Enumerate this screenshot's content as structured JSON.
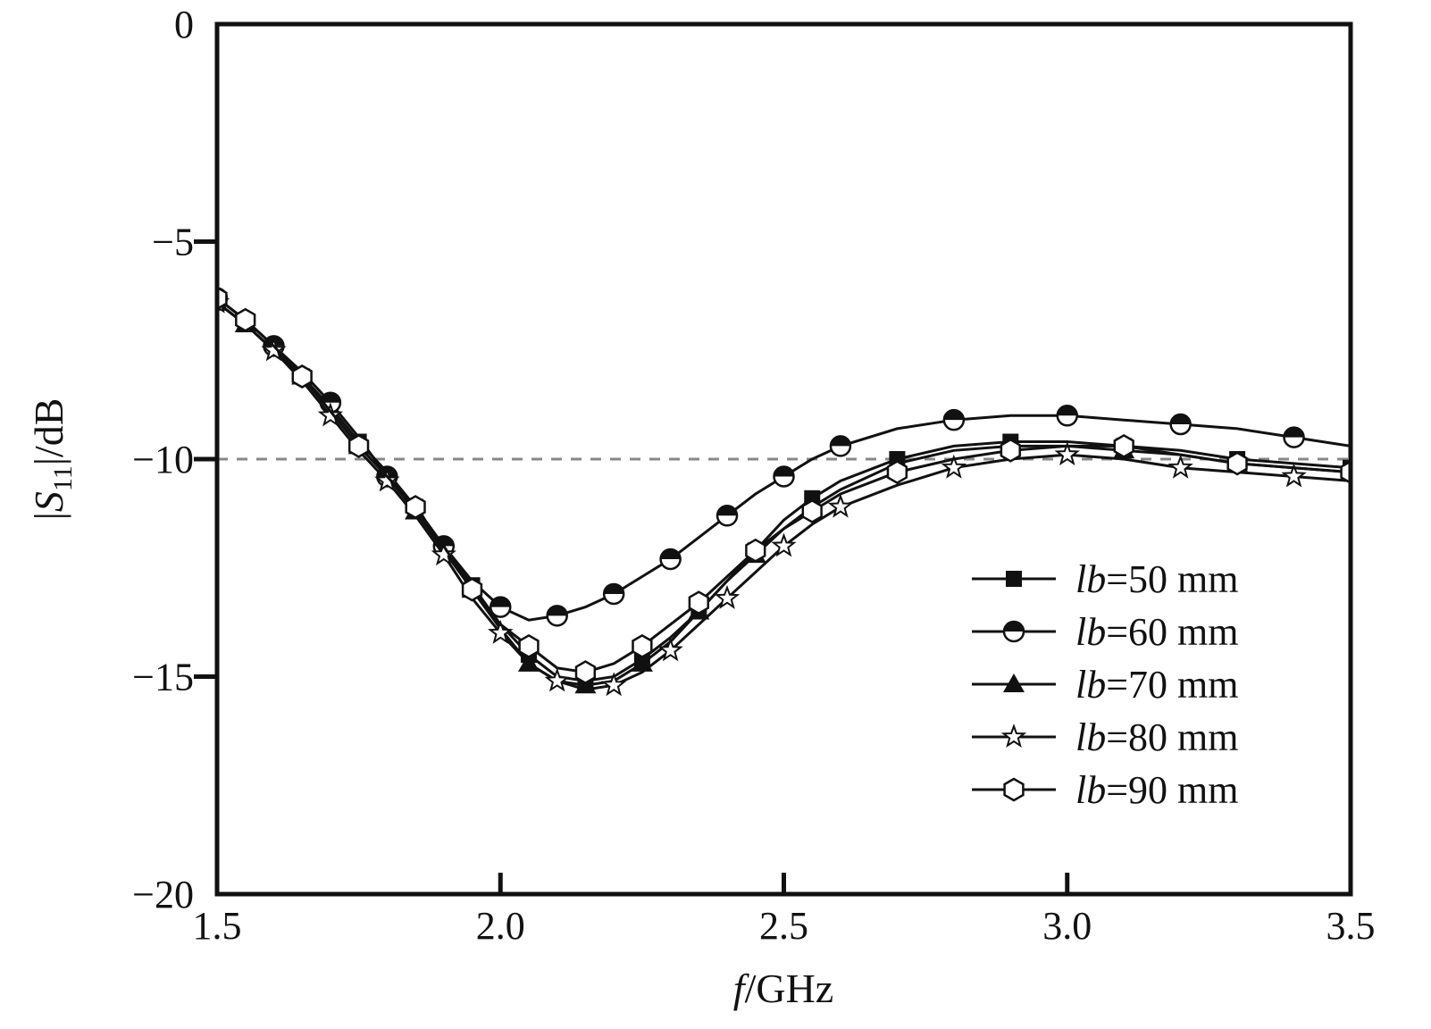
{
  "chart_data": {
    "type": "line",
    "xlabel": {
      "italic": "f",
      "rest": "/GHz"
    },
    "ylabel": {
      "prefix": "|",
      "italic": "S",
      "sub": "11",
      "suffix": "|/dB"
    },
    "xlim": [
      1.5,
      3.5
    ],
    "ylim": [
      -20,
      0
    ],
    "xticks": [
      "1.5",
      "2.0",
      "2.5",
      "3.0",
      "3.5"
    ],
    "yticks": [
      "0",
      "−5",
      "−10",
      "−15",
      "−20"
    ],
    "xtick_values": [
      1.5,
      2.0,
      2.5,
      3.0,
      3.5
    ],
    "ytick_values": [
      0,
      -5,
      -10,
      -15,
      -20
    ],
    "grid": false,
    "legend_position": "bottom-right",
    "reference_line": {
      "y": -10,
      "style": "dashed",
      "color": "#888888"
    },
    "series": [
      {
        "name": "lb=50 mm",
        "legend": {
          "italic": "lb",
          "rest": "=50 mm"
        },
        "marker": "square",
        "x": [
          1.5,
          1.55,
          1.6,
          1.65,
          1.7,
          1.75,
          1.8,
          1.85,
          1.9,
          1.95,
          2.0,
          2.05,
          2.1,
          2.15,
          2.2,
          2.25,
          2.3,
          2.35,
          2.4,
          2.45,
          2.5,
          2.55,
          2.6,
          2.7,
          2.8,
          2.9,
          3.0,
          3.1,
          3.2,
          3.3,
          3.4,
          3.5
        ],
        "y": [
          -6.4,
          -6.9,
          -7.5,
          -8.1,
          -8.8,
          -9.6,
          -10.3,
          -11.1,
          -12.0,
          -12.9,
          -13.8,
          -14.5,
          -15.0,
          -15.1,
          -15.0,
          -14.6,
          -14.1,
          -13.5,
          -12.8,
          -12.1,
          -11.4,
          -10.9,
          -10.5,
          -10.0,
          -9.7,
          -9.6,
          -9.6,
          -9.7,
          -9.8,
          -10.0,
          -10.1,
          -10.2
        ]
      },
      {
        "name": "lb=60 mm",
        "legend": {
          "italic": "lb",
          "rest": "=60 mm"
        },
        "marker": "half-circle",
        "x": [
          1.5,
          1.55,
          1.6,
          1.65,
          1.7,
          1.75,
          1.8,
          1.85,
          1.9,
          1.95,
          2.0,
          2.05,
          2.1,
          2.15,
          2.2,
          2.25,
          2.3,
          2.35,
          2.4,
          2.45,
          2.5,
          2.55,
          2.6,
          2.7,
          2.8,
          2.9,
          3.0,
          3.1,
          3.2,
          3.3,
          3.4,
          3.5
        ],
        "y": [
          -6.3,
          -6.8,
          -7.4,
          -8.0,
          -8.7,
          -9.5,
          -10.4,
          -11.2,
          -12.0,
          -12.8,
          -13.4,
          -13.7,
          -13.6,
          -13.4,
          -13.1,
          -12.7,
          -12.3,
          -11.8,
          -11.3,
          -10.8,
          -10.4,
          -10.0,
          -9.7,
          -9.3,
          -9.1,
          -9.0,
          -9.0,
          -9.1,
          -9.2,
          -9.3,
          -9.5,
          -9.7
        ]
      },
      {
        "name": "lb=70 mm",
        "legend": {
          "italic": "lb",
          "rest": "=70 mm"
        },
        "marker": "triangle",
        "x": [
          1.5,
          1.55,
          1.6,
          1.65,
          1.7,
          1.75,
          1.8,
          1.85,
          1.9,
          1.95,
          2.0,
          2.05,
          2.1,
          2.15,
          2.2,
          2.25,
          2.3,
          2.35,
          2.4,
          2.45,
          2.5,
          2.55,
          2.6,
          2.7,
          2.8,
          2.9,
          3.0,
          3.1,
          3.2,
          3.3,
          3.4,
          3.5
        ],
        "y": [
          -6.4,
          -6.9,
          -7.5,
          -8.1,
          -8.9,
          -9.7,
          -10.4,
          -11.2,
          -12.1,
          -13.0,
          -13.9,
          -14.7,
          -15.1,
          -15.2,
          -15.1,
          -14.7,
          -14.2,
          -13.5,
          -12.8,
          -12.2,
          -11.6,
          -11.1,
          -10.7,
          -10.1,
          -9.8,
          -9.7,
          -9.7,
          -9.8,
          -9.9,
          -10.1,
          -10.2,
          -10.3
        ]
      },
      {
        "name": "lb=80 mm",
        "legend": {
          "italic": "lb",
          "rest": "=80 mm"
        },
        "marker": "star",
        "x": [
          1.5,
          1.55,
          1.6,
          1.65,
          1.7,
          1.75,
          1.8,
          1.85,
          1.9,
          1.95,
          2.0,
          2.05,
          2.1,
          2.15,
          2.2,
          2.25,
          2.3,
          2.35,
          2.4,
          2.45,
          2.5,
          2.55,
          2.6,
          2.7,
          2.8,
          2.9,
          3.0,
          3.1,
          3.2,
          3.3,
          3.4,
          3.5
        ],
        "y": [
          -6.4,
          -6.9,
          -7.5,
          -8.2,
          -9.0,
          -9.8,
          -10.5,
          -11.3,
          -12.2,
          -13.2,
          -14.0,
          -14.7,
          -15.1,
          -15.3,
          -15.2,
          -14.9,
          -14.4,
          -13.8,
          -13.2,
          -12.6,
          -12.0,
          -11.5,
          -11.1,
          -10.6,
          -10.2,
          -10.0,
          -9.9,
          -10.0,
          -10.2,
          -10.3,
          -10.4,
          -10.5
        ]
      },
      {
        "name": "lb=90 mm",
        "legend": {
          "italic": "lb",
          "rest": "=90 mm"
        },
        "marker": "hexagon",
        "x": [
          1.5,
          1.55,
          1.6,
          1.65,
          1.7,
          1.75,
          1.8,
          1.85,
          1.9,
          1.95,
          2.0,
          2.05,
          2.1,
          2.15,
          2.2,
          2.25,
          2.3,
          2.35,
          2.4,
          2.45,
          2.5,
          2.55,
          2.6,
          2.7,
          2.8,
          2.9,
          3.0,
          3.1,
          3.2,
          3.3,
          3.4,
          3.5
        ],
        "y": [
          -6.3,
          -6.8,
          -7.4,
          -8.1,
          -8.9,
          -9.7,
          -10.4,
          -11.1,
          -12.0,
          -13.0,
          -13.8,
          -14.3,
          -14.8,
          -14.9,
          -14.7,
          -14.3,
          -13.8,
          -13.3,
          -12.7,
          -12.1,
          -11.6,
          -11.2,
          -10.8,
          -10.3,
          -10.0,
          -9.8,
          -9.7,
          -9.7,
          -9.9,
          -10.1,
          -10.2,
          -10.3
        ]
      }
    ]
  }
}
